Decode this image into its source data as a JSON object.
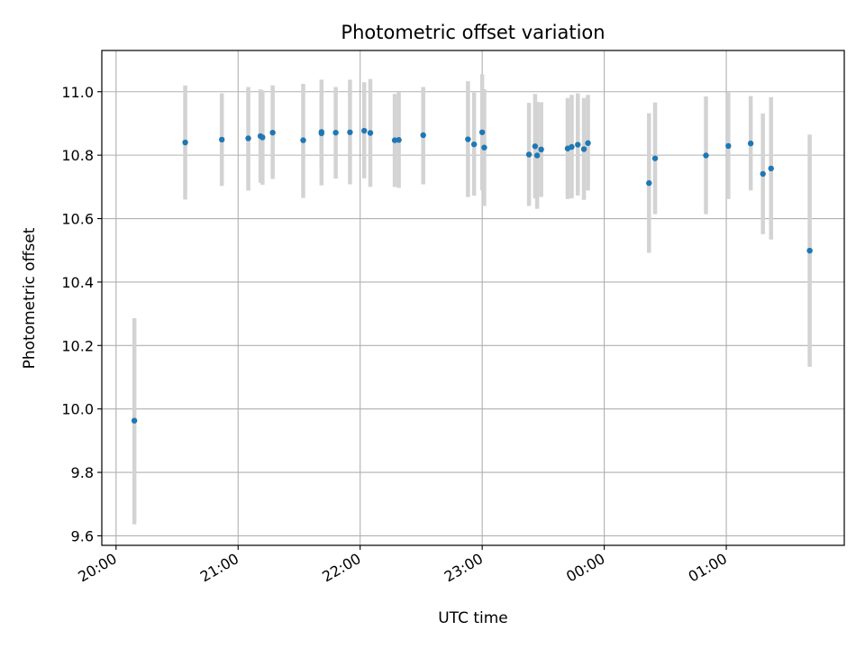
{
  "chart_data": {
    "type": "scatter",
    "title": "Photometric offset variation",
    "xlabel": "UTC time",
    "ylabel": "Photometric offset",
    "x_unit": "UTC time (HH:MM), next-day times written as 24:xx / 25:xx",
    "xlim": [
      "19:53",
      "25:58"
    ],
    "ylim": [
      9.57,
      11.13
    ],
    "x_ticks": [
      "20:00",
      "21:00",
      "22:00",
      "23:00",
      "24:00",
      "25:00"
    ],
    "x_tick_labels": [
      "20:00",
      "21:00",
      "22:00",
      "23:00",
      "00:00",
      "01:00"
    ],
    "y_ticks": [
      9.6,
      9.8,
      10.0,
      10.2,
      10.4,
      10.6,
      10.8,
      11.0
    ],
    "y_tick_labels": [
      "9.6",
      "9.8",
      "10.0",
      "10.2",
      "10.4",
      "10.6",
      "10.8",
      "11.0"
    ],
    "grid": true,
    "point_color": "#1f77b4",
    "errorbar_color": "#d3d3d3",
    "points": [
      {
        "x": "20:09",
        "y": 9.963,
        "lo": 9.636,
        "hi": 10.286
      },
      {
        "x": "20:34",
        "y": 10.84,
        "lo": 10.66,
        "hi": 11.02
      },
      {
        "x": "20:52",
        "y": 10.849,
        "lo": 10.703,
        "hi": 10.995
      },
      {
        "x": "21:05",
        "y": 10.853,
        "lo": 10.688,
        "hi": 11.015
      },
      {
        "x": "21:11",
        "y": 10.86,
        "lo": 10.713,
        "hi": 11.007
      },
      {
        "x": "21:12",
        "y": 10.856,
        "lo": 10.707,
        "hi": 11.004
      },
      {
        "x": "21:17",
        "y": 10.871,
        "lo": 10.725,
        "hi": 11.02
      },
      {
        "x": "21:32",
        "y": 10.847,
        "lo": 10.665,
        "hi": 11.025
      },
      {
        "x": "21:41",
        "y": 10.873,
        "lo": 10.705,
        "hi": 11.038
      },
      {
        "x": "21:41",
        "y": 10.869,
        "lo": 10.75,
        "hi": 10.99
      },
      {
        "x": "21:48",
        "y": 10.871,
        "lo": 10.726,
        "hi": 11.015
      },
      {
        "x": "21:55",
        "y": 10.872,
        "lo": 10.708,
        "hi": 11.038
      },
      {
        "x": "22:02",
        "y": 10.877,
        "lo": 10.727,
        "hi": 11.03
      },
      {
        "x": "22:05",
        "y": 10.87,
        "lo": 10.7,
        "hi": 11.04
      },
      {
        "x": "22:17",
        "y": 10.847,
        "lo": 10.7,
        "hi": 10.993
      },
      {
        "x": "22:19",
        "y": 10.848,
        "lo": 10.697,
        "hi": 10.998
      },
      {
        "x": "22:31",
        "y": 10.863,
        "lo": 10.708,
        "hi": 11.015
      },
      {
        "x": "22:53",
        "y": 10.85,
        "lo": 10.668,
        "hi": 11.033
      },
      {
        "x": "22:56",
        "y": 10.834,
        "lo": 10.672,
        "hi": 10.997
      },
      {
        "x": "23:00",
        "y": 10.872,
        "lo": 10.689,
        "hi": 11.055
      },
      {
        "x": "23:01",
        "y": 10.824,
        "lo": 10.64,
        "hi": 11.008
      },
      {
        "x": "23:23",
        "y": 10.802,
        "lo": 10.64,
        "hi": 10.965
      },
      {
        "x": "23:26",
        "y": 10.828,
        "lo": 10.664,
        "hi": 10.993
      },
      {
        "x": "23:27",
        "y": 10.799,
        "lo": 10.631,
        "hi": 10.968
      },
      {
        "x": "23:29",
        "y": 10.818,
        "lo": 10.668,
        "hi": 10.967
      },
      {
        "x": "23:42",
        "y": 10.821,
        "lo": 10.662,
        "hi": 10.98
      },
      {
        "x": "23:44",
        "y": 10.826,
        "lo": 10.664,
        "hi": 10.99
      },
      {
        "x": "23:47",
        "y": 10.833,
        "lo": 10.673,
        "hi": 10.995
      },
      {
        "x": "23:50",
        "y": 10.819,
        "lo": 10.659,
        "hi": 10.98
      },
      {
        "x": "23:52",
        "y": 10.838,
        "lo": 10.689,
        "hi": 10.99
      },
      {
        "x": "24:22",
        "y": 10.712,
        "lo": 10.492,
        "hi": 10.932
      },
      {
        "x": "24:25",
        "y": 10.79,
        "lo": 10.614,
        "hi": 10.966
      },
      {
        "x": "24:50",
        "y": 10.799,
        "lo": 10.614,
        "hi": 10.985
      },
      {
        "x": "25:01",
        "y": 10.829,
        "lo": 10.662,
        "hi": 10.998
      },
      {
        "x": "25:12",
        "y": 10.837,
        "lo": 10.689,
        "hi": 10.986
      },
      {
        "x": "25:18",
        "y": 10.741,
        "lo": 10.551,
        "hi": 10.931
      },
      {
        "x": "25:22",
        "y": 10.758,
        "lo": 10.534,
        "hi": 10.983
      },
      {
        "x": "25:41",
        "y": 10.499,
        "lo": 10.133,
        "hi": 10.865
      }
    ]
  }
}
